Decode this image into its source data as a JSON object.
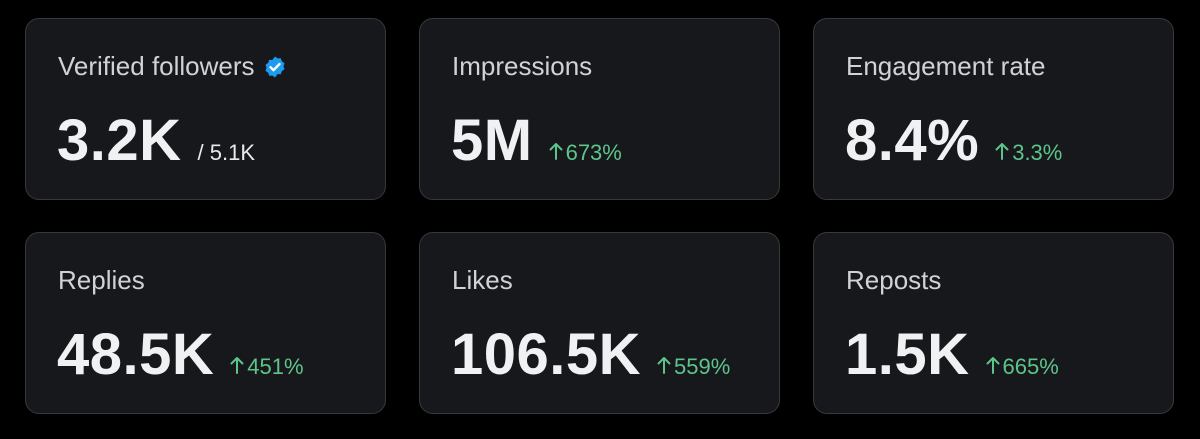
{
  "cards": [
    {
      "label": "Verified followers",
      "value": "3.2K",
      "total": "/ 5.1K"
    },
    {
      "label": "Impressions",
      "value": "5M",
      "change": "673%"
    },
    {
      "label": "Engagement rate",
      "value": "8.4%",
      "change": "3.3%"
    },
    {
      "label": "Replies",
      "value": "48.5K",
      "change": "451%"
    },
    {
      "label": "Likes",
      "value": "106.5K",
      "change": "559%"
    },
    {
      "label": "Reposts",
      "value": "1.5K",
      "change": "665%"
    }
  ]
}
